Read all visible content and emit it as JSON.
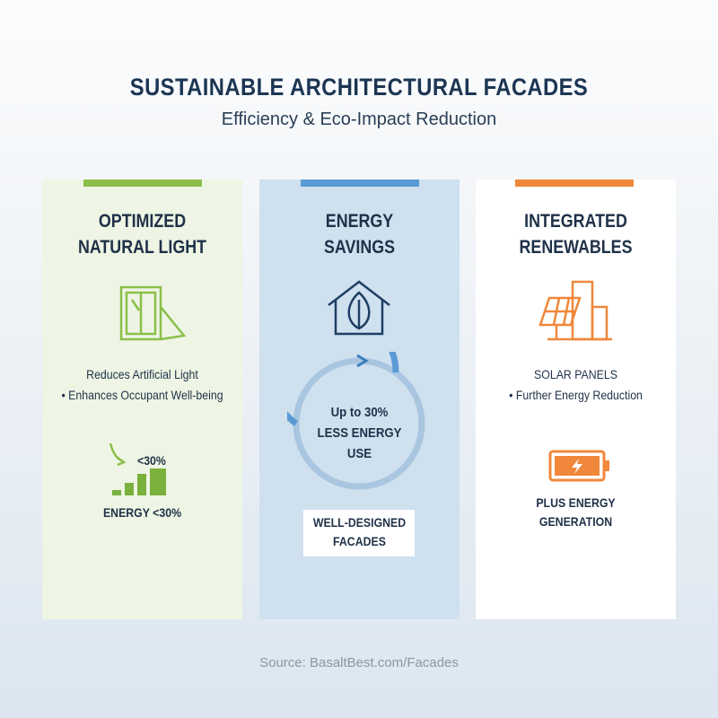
{
  "header": {
    "title": "SUSTAINABLE ARCHITECTURAL FACADES",
    "subtitle": "Efficiency & Eco-Impact Reduction"
  },
  "panels": [
    {
      "heading": [
        "OPTIMIZED",
        "NATURAL LIGHT"
      ],
      "bullets": [
        "Reduces Artificial Light",
        "• Enhances Occupant Well-being"
      ],
      "stat": "<30%",
      "caption": "ENERGY <30%"
    },
    {
      "heading": [
        "ENERGY",
        "SAVINGS"
      ],
      "gauge": [
        "Up to 30%",
        "LESS ENERGY",
        "USE"
      ],
      "box": [
        "WELL-DESIGNED",
        "FACADES"
      ]
    },
    {
      "heading": [
        "INTEGRATED",
        "RENEWABLES"
      ],
      "bullets": [
        "SOLAR PANELS",
        "• Further Energy Reduction"
      ],
      "caption": [
        "PLUS ENERGY",
        "GENERATION"
      ]
    }
  ],
  "footer": {
    "source": "Source: BasaltBest.com/Facades"
  }
}
